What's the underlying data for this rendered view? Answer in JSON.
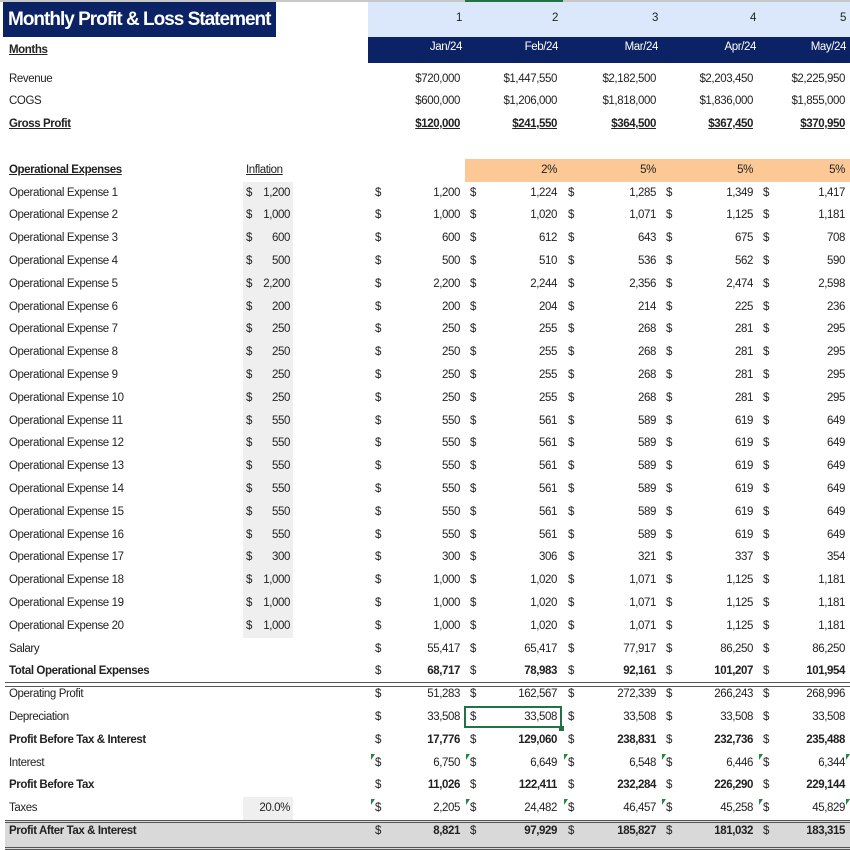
{
  "title": "Monthly Profit & Loss Statement",
  "months_label": "Months",
  "period_index": [
    "1",
    "2",
    "3",
    "4",
    "5"
  ],
  "months": [
    "Jan/24",
    "Feb/24",
    "Mar/24",
    "Apr/24",
    "May/24"
  ],
  "inflation_header": "Inflation",
  "inflation_rates": [
    "",
    "2%",
    "5%",
    "5%",
    "5%"
  ],
  "currency_symbol": "$",
  "colors": {
    "header_navy": "#0b2265",
    "index_band": "#dbe8fb",
    "inflation_band": "#fcc996",
    "selection": "#217346",
    "total_band": "#d9d9d9"
  },
  "selected_cell": {
    "row": "Depreciation",
    "month": "Feb/24"
  },
  "top_rows": [
    {
      "label": "Revenue",
      "values": [
        "$720,000",
        "$1,447,550",
        "$2,182,500",
        "$2,203,450",
        "$2,225,950"
      ]
    },
    {
      "label": "COGS",
      "values": [
        "$600,000",
        "$1,206,000",
        "$1,818,000",
        "$1,836,000",
        "$1,855,000"
      ]
    },
    {
      "label": "Gross Profit",
      "values": [
        "$120,000",
        "$241,550",
        "$364,500",
        "$367,450",
        "$370,950"
      ]
    }
  ],
  "opex_header": "Operational Expenses",
  "rows": [
    {
      "label": "Operational Expense 1",
      "inflation": "1,200",
      "values": [
        "1,200",
        "1,224",
        "1,285",
        "1,349",
        "1,417"
      ]
    },
    {
      "label": "Operational Expense 2",
      "inflation": "1,000",
      "values": [
        "1,000",
        "1,020",
        "1,071",
        "1,125",
        "1,181"
      ]
    },
    {
      "label": "Operational Expense 3",
      "inflation": "600",
      "values": [
        "600",
        "612",
        "643",
        "675",
        "708"
      ]
    },
    {
      "label": "Operational Expense 4",
      "inflation": "500",
      "values": [
        "500",
        "510",
        "536",
        "562",
        "590"
      ]
    },
    {
      "label": "Operational Expense 5",
      "inflation": "2,200",
      "values": [
        "2,200",
        "2,244",
        "2,356",
        "2,474",
        "2,598"
      ]
    },
    {
      "label": "Operational Expense 6",
      "inflation": "200",
      "values": [
        "200",
        "204",
        "214",
        "225",
        "236"
      ]
    },
    {
      "label": "Operational Expense 7",
      "inflation": "250",
      "values": [
        "250",
        "255",
        "268",
        "281",
        "295"
      ]
    },
    {
      "label": "Operational Expense 8",
      "inflation": "250",
      "values": [
        "250",
        "255",
        "268",
        "281",
        "295"
      ]
    },
    {
      "label": "Operational Expense 9",
      "inflation": "250",
      "values": [
        "250",
        "255",
        "268",
        "281",
        "295"
      ]
    },
    {
      "label": "Operational Expense 10",
      "inflation": "250",
      "values": [
        "250",
        "255",
        "268",
        "281",
        "295"
      ]
    },
    {
      "label": "Operational Expense 11",
      "inflation": "550",
      "values": [
        "550",
        "561",
        "589",
        "619",
        "649"
      ]
    },
    {
      "label": "Operational Expense 12",
      "inflation": "550",
      "values": [
        "550",
        "561",
        "589",
        "619",
        "649"
      ]
    },
    {
      "label": "Operational Expense 13",
      "inflation": "550",
      "values": [
        "550",
        "561",
        "589",
        "619",
        "649"
      ]
    },
    {
      "label": "Operational Expense 14",
      "inflation": "550",
      "values": [
        "550",
        "561",
        "589",
        "619",
        "649"
      ]
    },
    {
      "label": "Operational Expense 15",
      "inflation": "550",
      "values": [
        "550",
        "561",
        "589",
        "619",
        "649"
      ]
    },
    {
      "label": "Operational Expense 16",
      "inflation": "550",
      "values": [
        "550",
        "561",
        "589",
        "619",
        "649"
      ]
    },
    {
      "label": "Operational Expense 17",
      "inflation": "300",
      "values": [
        "300",
        "306",
        "321",
        "337",
        "354"
      ]
    },
    {
      "label": "Operational Expense 18",
      "inflation": "1,000",
      "values": [
        "1,000",
        "1,020",
        "1,071",
        "1,125",
        "1,181"
      ]
    },
    {
      "label": "Operational Expense 19",
      "inflation": "1,000",
      "values": [
        "1,000",
        "1,020",
        "1,071",
        "1,125",
        "1,181"
      ]
    },
    {
      "label": "Operational Expense 20",
      "inflation": "1,000",
      "values": [
        "1,000",
        "1,020",
        "1,071",
        "1,125",
        "1,181"
      ]
    },
    {
      "label": "Salary",
      "values": [
        "55,417",
        "65,417",
        "77,917",
        "86,250",
        "86,250"
      ]
    },
    {
      "label": "Total Operational Expenses",
      "bold": true,
      "values": [
        "68,717",
        "78,983",
        "92,161",
        "101,207",
        "101,954"
      ]
    },
    {
      "label": "Operating Profit",
      "values": [
        "51,283",
        "162,567",
        "272,339",
        "266,243",
        "268,996"
      ]
    },
    {
      "label": "Depreciation",
      "values": [
        "33,508",
        "33,508",
        "33,508",
        "33,508",
        "33,508"
      ]
    },
    {
      "label": "Profit Before Tax & Interest",
      "bold": true,
      "values": [
        "17,776",
        "129,060",
        "238,831",
        "232,736",
        "235,488"
      ]
    },
    {
      "label": "Interest",
      "flag": true,
      "values": [
        "6,750",
        "6,649",
        "6,548",
        "6,446",
        "6,344"
      ]
    },
    {
      "label": "Profit Before Tax",
      "bold": true,
      "values": [
        "11,026",
        "122,411",
        "232,284",
        "226,290",
        "229,144"
      ]
    },
    {
      "label": "Taxes",
      "rate": "20.0%",
      "flag": true,
      "values": [
        "2,205",
        "24,482",
        "46,457",
        "45,258",
        "45,829"
      ]
    },
    {
      "label": "Profit After Tax & Interest",
      "bold": true,
      "values": [
        "8,821",
        "97,929",
        "185,827",
        "181,032",
        "183,315"
      ]
    }
  ]
}
